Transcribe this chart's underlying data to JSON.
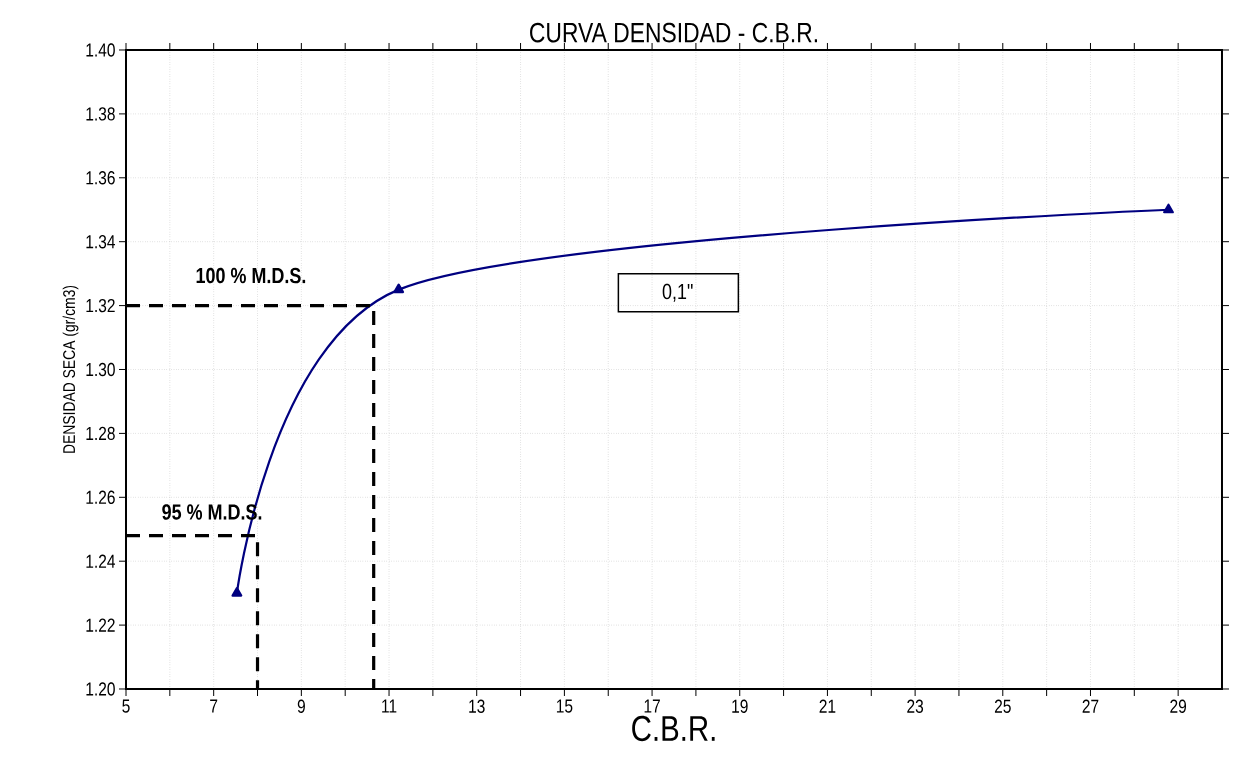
{
  "chart_data": {
    "type": "line",
    "title": "CURVA DENSIDAD - C.B.R.",
    "xlabel": "C.B.R.",
    "ylabel": "DENSIDAD SECA (gr/cm3)",
    "xlim": [
      5,
      30
    ],
    "ylim": [
      1.2,
      1.4
    ],
    "xticks": [
      5,
      7,
      9,
      11,
      13,
      15,
      17,
      19,
      21,
      23,
      25,
      27,
      29
    ],
    "yticks": [
      {
        "value": 1.2,
        "label": "1.20"
      },
      {
        "value": 1.22,
        "label": "1.22"
      },
      {
        "value": 1.24,
        "label": "1.24"
      },
      {
        "value": 1.26,
        "label": "1.26"
      },
      {
        "value": 1.28,
        "label": "1.28"
      },
      {
        "value": 1.3,
        "label": "1.30"
      },
      {
        "value": 1.32,
        "label": "1.32"
      },
      {
        "value": 1.34,
        "label": "1.34"
      },
      {
        "value": 1.36,
        "label": "1.36"
      },
      {
        "value": 1.38,
        "label": "1.38"
      },
      {
        "value": 1.4,
        "label": "1.40"
      }
    ],
    "grid": true,
    "marker": "triangle",
    "series": [
      {
        "color": "#000080",
        "x": [
          7.53,
          11.22,
          28.78
        ],
        "values": [
          1.23,
          1.325,
          1.35
        ]
      },
      {
        "type": "step",
        "color": "#000000",
        "line_style": "dashed",
        "marker": "none",
        "x": [
          5,
          10.65
        ],
        "values": [
          1.32,
          1.2
        ]
      },
      {
        "type": "step",
        "color": "#000000",
        "line_style": "dashed",
        "marker": "none",
        "x": [
          5,
          8.0
        ],
        "values": [
          1.248,
          1.2
        ]
      }
    ],
    "annotations": [
      "100 % M.D.S.",
      "95 % M.D.S.",
      "0,1\""
    ]
  }
}
